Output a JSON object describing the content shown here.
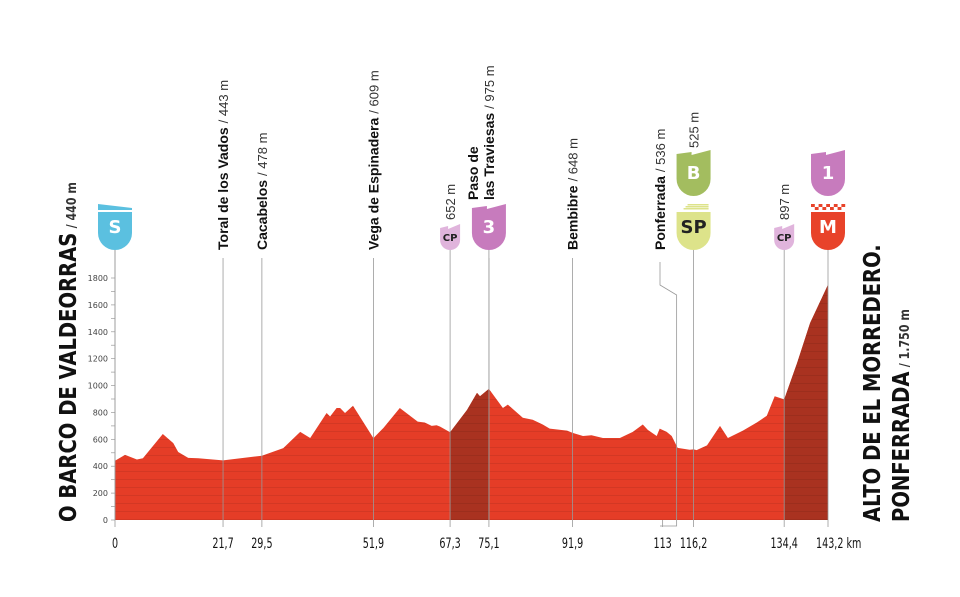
{
  "chart_data": {
    "type": "area",
    "xlabel_unit": "km",
    "xlim": [
      0,
      143.2
    ],
    "ylim": [
      0,
      1800
    ],
    "y_ticks": [
      0,
      200,
      400,
      600,
      800,
      1000,
      1200,
      1400,
      1600,
      1800
    ],
    "x_tick_labels": [
      "0",
      "21,7",
      "29,5",
      "51,9",
      "67,3",
      "75,1",
      "91,9",
      "113",
      "116,2",
      "134,4",
      "143,2 km"
    ],
    "x_ticks": [
      0,
      21.7,
      29.5,
      51.9,
      67.3,
      75.1,
      91.9,
      113,
      116.2,
      134.4,
      143.2
    ],
    "colors": {
      "profile": "#e53d27",
      "climb": "#a93220",
      "start": "#5bc0e0",
      "checkpoint": "#e0b4dc",
      "category": "#c77bbd",
      "bonus": "#a3bd5f",
      "sprint": "#dde38a",
      "finish": "#e8432a"
    },
    "profile": [
      [
        0,
        440
      ],
      [
        2,
        484
      ],
      [
        4.4,
        450
      ],
      [
        5.6,
        460
      ],
      [
        9.6,
        640
      ],
      [
        11.7,
        572
      ],
      [
        12.7,
        506
      ],
      [
        14.7,
        462
      ],
      [
        16.7,
        460
      ],
      [
        21.7,
        443
      ],
      [
        29.5,
        478
      ],
      [
        33.8,
        535
      ],
      [
        37.2,
        655
      ],
      [
        39.2,
        610
      ],
      [
        42.5,
        796
      ],
      [
        43.2,
        770
      ],
      [
        44.5,
        833
      ],
      [
        45.2,
        833
      ],
      [
        46.2,
        796
      ],
      [
        47.8,
        850
      ],
      [
        51.9,
        609
      ],
      [
        53.9,
        684
      ],
      [
        57.2,
        833
      ],
      [
        60.8,
        732
      ],
      [
        62.2,
        725
      ],
      [
        63.6,
        700
      ],
      [
        64.6,
        705
      ],
      [
        65.3,
        695
      ],
      [
        67.3,
        652
      ],
      [
        70.7,
        818
      ],
      [
        72.7,
        945
      ],
      [
        73.3,
        920
      ],
      [
        75.1,
        975
      ],
      [
        77.9,
        833
      ],
      [
        78.9,
        858
      ],
      [
        81.9,
        760
      ],
      [
        83.9,
        745
      ],
      [
        85.9,
        710
      ],
      [
        87.3,
        680
      ],
      [
        90.8,
        665
      ],
      [
        91.9,
        648
      ],
      [
        94,
        625
      ],
      [
        95.7,
        630
      ],
      [
        98,
        610
      ],
      [
        101.4,
        610
      ],
      [
        104,
        655
      ],
      [
        106,
        710
      ],
      [
        107,
        670
      ],
      [
        108.8,
        625
      ],
      [
        109.4,
        680
      ],
      [
        110.8,
        655
      ],
      [
        111.8,
        625
      ],
      [
        113,
        536
      ],
      [
        115.4,
        522
      ],
      [
        116.2,
        525
      ],
      [
        116.8,
        520
      ],
      [
        118.9,
        555
      ],
      [
        121.5,
        700
      ],
      [
        123.1,
        610
      ],
      [
        126.1,
        665
      ],
      [
        128.9,
        725
      ],
      [
        130.9,
        775
      ],
      [
        132.5,
        920
      ],
      [
        134.4,
        897
      ],
      [
        137,
        1168
      ],
      [
        139.6,
        1465
      ],
      [
        143.2,
        1750
      ]
    ],
    "climb_segments": [
      [
        67.3,
        75.1
      ],
      [
        134.4,
        143.2
      ]
    ],
    "start": {
      "name": "O BARCO DE VALDEORRAS",
      "elev": "/ 440 m"
    },
    "finish": {
      "name_line1": "ALTO DE EL MORREDERO.",
      "name_line2": "PONFERRADA",
      "elev": "/ 1.750 m"
    },
    "waypoints": [
      {
        "km": 21.7,
        "name": [
          "Toral de los Vados"
        ],
        "elev": "/ 443 m"
      },
      {
        "km": 29.5,
        "name": [
          "Cacabelos"
        ],
        "elev": "/ 478 m"
      },
      {
        "km": 51.9,
        "name": [
          "Vega de Espinadera"
        ],
        "elev": "/ 609 m"
      },
      {
        "km": 75.1,
        "name": [
          "Paso de",
          "las Traviesas"
        ],
        "elev": "/ 975 m"
      },
      {
        "km": 91.9,
        "name": [
          "Bembibre"
        ],
        "elev": "/ 648 m"
      },
      {
        "km": 113,
        "name": [
          "Ponferrada"
        ],
        "elev": "/ 536 m"
      }
    ],
    "badges": [
      {
        "km": 0,
        "label": "S",
        "type": "start",
        "icon": "start-flag-icon"
      },
      {
        "km": 67.3,
        "label": "CP",
        "type": "checkpoint",
        "elev": "652 m",
        "icon": "checkpoint-icon"
      },
      {
        "km": 75.1,
        "label": "3",
        "type": "category",
        "icon": "category-3-climb-icon"
      },
      {
        "km": 116.2,
        "label": "B",
        "type": "bonus",
        "elev": "525 m",
        "icon": "bonus-icon"
      },
      {
        "km": 116.2,
        "label": "SP",
        "type": "sprint",
        "icon": "sprint-icon"
      },
      {
        "km": 134.4,
        "label": "CP",
        "type": "checkpoint",
        "elev": "897 m",
        "icon": "checkpoint-icon"
      },
      {
        "km": 143.2,
        "label": "1",
        "type": "category",
        "icon": "category-1-climb-icon"
      },
      {
        "km": 143.2,
        "label": "M",
        "type": "finish",
        "icon": "finish-icon"
      }
    ]
  }
}
